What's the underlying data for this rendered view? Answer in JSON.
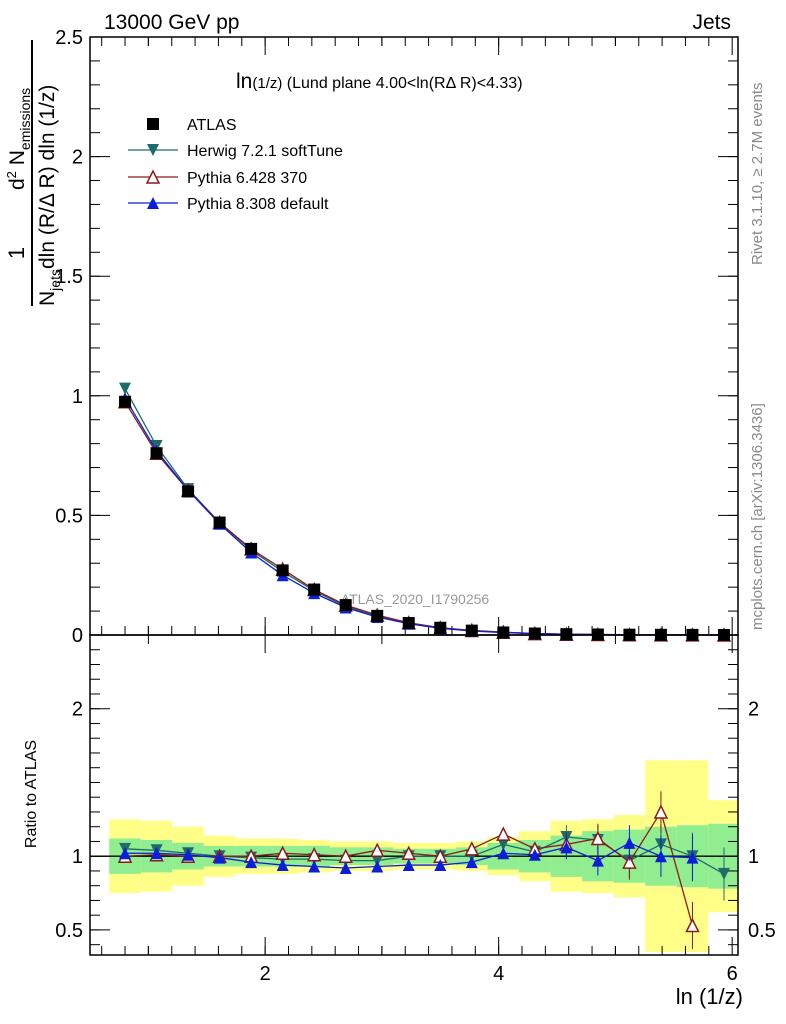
{
  "header": {
    "left": "13000 GeV pp",
    "right": "Jets"
  },
  "side": {
    "rivet": "Rivet 3.1.10, ≥ 2.7M events",
    "mcplots": "mcplots.cern.ch [arXiv:1306.3436]"
  },
  "watermark": "ATLAS_2020_I1790256",
  "plot_title": {
    "main": "ln",
    "paren": "(1/z)",
    "rest": "  (Lund plane 4.00<ln(RΔ R)<4.33)"
  },
  "ylabel_top": {
    "one": "1",
    "d2": "d",
    "sup2": "2",
    "n": " N",
    "sub_em": "emissions",
    "den_n": "N",
    "den_sub": "jets",
    "den_rest": "dln (R/Δ R) dln (1/z)"
  },
  "ylabel_bottom": "Ratio to ATLAS",
  "xlabel": "ln (1/z)",
  "legend": [
    {
      "label": "ATLAS",
      "color": "#000000",
      "marker": "square"
    },
    {
      "label": "Herwig 7.2.1 softTune",
      "color": "#1f6b6b",
      "marker": "triangle-down"
    },
    {
      "label": "Pythia 6.428 370",
      "color": "#8b1a1a",
      "marker": "triangle-open"
    },
    {
      "label": "Pythia 8.308 default",
      "color": "#0b1fd6",
      "marker": "triangle-up"
    }
  ],
  "chart_data": {
    "type": "line",
    "x": [
      0.8,
      1.07,
      1.34,
      1.61,
      1.88,
      2.15,
      2.42,
      2.69,
      2.96,
      3.23,
      3.5,
      3.77,
      4.04,
      4.31,
      4.58,
      4.85,
      5.12,
      5.39,
      5.66,
      5.93
    ],
    "xlim": [
      0.5,
      6.05
    ],
    "xticks": [
      "2",
      "4",
      "6"
    ],
    "upper": {
      "ylim": [
        0,
        2.5
      ],
      "yticks": [
        "0",
        "0.5",
        "1",
        "1.5",
        "2",
        "2.5"
      ],
      "series": [
        {
          "name": "ATLAS",
          "values": [
            0.975,
            0.76,
            0.6,
            0.47,
            0.36,
            0.27,
            0.19,
            0.125,
            0.08,
            0.05,
            0.03,
            0.018,
            0.01,
            0.006,
            0.003,
            0.002,
            0.001,
            0.0006,
            0.0003,
            0.0001
          ]
        },
        {
          "name": "Herwig 7.2.1 softTune",
          "values": [
            1.03,
            0.79,
            0.61,
            0.47,
            0.355,
            0.265,
            0.185,
            0.12,
            0.078,
            0.05,
            0.03,
            0.018,
            0.011,
            0.006,
            0.003,
            0.002,
            0.001,
            0.0006,
            0.0003,
            0.0001
          ]
        },
        {
          "name": "Pythia 6.428 370",
          "values": [
            0.975,
            0.76,
            0.605,
            0.47,
            0.36,
            0.275,
            0.19,
            0.125,
            0.083,
            0.051,
            0.03,
            0.019,
            0.012,
            0.006,
            0.003,
            0.002,
            0.001,
            0.0006,
            0.0004,
            0.0001
          ]
        },
        {
          "name": "Pythia 8.308 default",
          "values": [
            0.99,
            0.77,
            0.605,
            0.465,
            0.345,
            0.25,
            0.175,
            0.115,
            0.075,
            0.047,
            0.028,
            0.017,
            0.01,
            0.006,
            0.003,
            0.002,
            0.001,
            0.0006,
            0.0003,
            0.0001
          ]
        }
      ]
    },
    "ratio": {
      "ylim": [
        0.33,
        2.5
      ],
      "yticks": [
        "0.5",
        "1",
        "2"
      ],
      "band_inner": [
        [
          0.88,
          1.12
        ],
        [
          0.89,
          1.11
        ],
        [
          0.91,
          1.09
        ],
        [
          0.93,
          1.07
        ],
        [
          0.93,
          1.07
        ],
        [
          0.93,
          1.07
        ],
        [
          0.93,
          1.07
        ],
        [
          0.94,
          1.06
        ],
        [
          0.94,
          1.06
        ],
        [
          0.95,
          1.05
        ],
        [
          0.95,
          1.05
        ],
        [
          0.94,
          1.06
        ],
        [
          0.91,
          1.09
        ],
        [
          0.89,
          1.11
        ],
        [
          0.86,
          1.14
        ],
        [
          0.83,
          1.17
        ],
        [
          0.82,
          1.18
        ],
        [
          0.8,
          1.2
        ],
        [
          0.79,
          1.21
        ],
        [
          0.78,
          1.22
        ]
      ],
      "band_outer": [
        [
          0.75,
          1.25
        ],
        [
          0.76,
          1.24
        ],
        [
          0.8,
          1.2
        ],
        [
          0.86,
          1.14
        ],
        [
          0.88,
          1.12
        ],
        [
          0.88,
          1.12
        ],
        [
          0.89,
          1.11
        ],
        [
          0.9,
          1.1
        ],
        [
          0.9,
          1.1
        ],
        [
          0.91,
          1.09
        ],
        [
          0.91,
          1.09
        ],
        [
          0.9,
          1.1
        ],
        [
          0.87,
          1.13
        ],
        [
          0.83,
          1.17
        ],
        [
          0.76,
          1.24
        ],
        [
          0.75,
          1.25
        ],
        [
          0.72,
          1.28
        ],
        [
          0.35,
          1.65
        ],
        [
          0.35,
          1.65
        ],
        [
          0.62,
          1.38
        ]
      ],
      "series": [
        {
          "name": "Herwig 7.2.1 softTune",
          "values": [
            1.05,
            1.04,
            1.02,
            1.0,
            0.99,
            0.98,
            0.98,
            0.97,
            0.97,
            1.0,
            1.0,
            1.0,
            1.08,
            1.03,
            1.13,
            1.11,
            0.97,
            1.08,
            1.0,
            0.88
          ]
        },
        {
          "name": "Pythia 6.428 370",
          "values": [
            1.0,
            1.01,
            1.0,
            1.0,
            1.0,
            1.02,
            1.01,
            1.0,
            1.04,
            1.02,
            1.0,
            1.05,
            1.15,
            1.05,
            1.08,
            1.12,
            0.96,
            1.3,
            0.53,
            null
          ]
        },
        {
          "name": "Pythia 8.308 default",
          "values": [
            1.02,
            1.02,
            1.01,
            0.99,
            0.96,
            0.94,
            0.93,
            0.92,
            0.93,
            0.94,
            0.94,
            0.96,
            1.02,
            1.01,
            1.06,
            0.97,
            1.09,
            1.0,
            0.99,
            null
          ]
        }
      ]
    }
  }
}
